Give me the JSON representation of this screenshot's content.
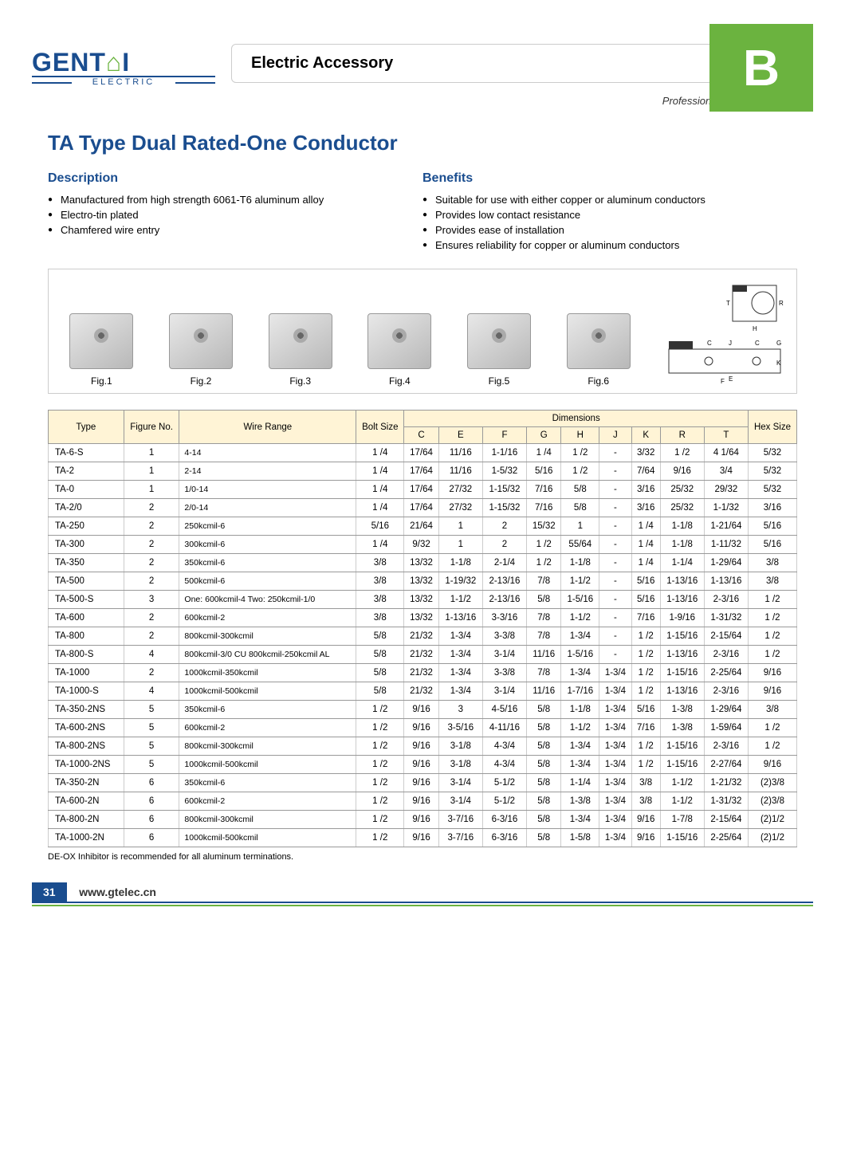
{
  "header": {
    "logo_text_1": "GENT",
    "logo_text_2": "I",
    "logo_sub": "ELECTRIC",
    "title": "Electric Accessory",
    "tab": "B",
    "tagline": "Professional Electrical Supplier"
  },
  "product_title": "TA Type Dual Rated-One Conductor",
  "description": {
    "heading": "Description",
    "items": [
      "Manufactured from high strength 6061-T6 aluminum alloy",
      "Electro-tin plated",
      "Chamfered wire entry"
    ]
  },
  "benefits": {
    "heading": "Benefits",
    "items": [
      "Suitable for use with either copper or aluminum conductors",
      "Provides low contact resistance",
      "Provides ease of installation",
      "Ensures reliability for copper or aluminum conductors"
    ]
  },
  "figures": [
    "Fig.1",
    "Fig.2",
    "Fig.3",
    "Fig.4",
    "Fig.5",
    "Fig.6"
  ],
  "table": {
    "top_headers": [
      "Type",
      "Figure No.",
      "Wire Range",
      "Bolt Size",
      "Dimensions",
      "Hex Size"
    ],
    "dim_headers": [
      "C",
      "E",
      "F",
      "G",
      "H",
      "J",
      "K",
      "R",
      "T"
    ],
    "rows": [
      [
        "TA-6-S",
        "1",
        "4-14",
        "1 /4",
        "17/64",
        "11/16",
        "1-1/16",
        "1 /4",
        "1 /2",
        "-",
        "3/32",
        "1 /2",
        "4 1/64",
        "5/32"
      ],
      [
        "TA-2",
        "1",
        "2-14",
        "1 /4",
        "17/64",
        "11/16",
        "1-5/32",
        "5/16",
        "1 /2",
        "-",
        "7/64",
        "9/16",
        "3/4",
        "5/32"
      ],
      [
        "TA-0",
        "1",
        "1/0-14",
        "1 /4",
        "17/64",
        "27/32",
        "1-15/32",
        "7/16",
        "5/8",
        "-",
        "3/16",
        "25/32",
        "29/32",
        "5/32"
      ],
      [
        "TA-2/0",
        "2",
        "2/0-14",
        "1 /4",
        "17/64",
        "27/32",
        "1-15/32",
        "7/16",
        "5/8",
        "-",
        "3/16",
        "25/32",
        "1-1/32",
        "3/16"
      ],
      [
        "TA-250",
        "2",
        "250kcmil-6",
        "5/16",
        "21/64",
        "1",
        "2",
        "15/32",
        "1",
        "-",
        "1 /4",
        "1-1/8",
        "1-21/64",
        "5/16"
      ],
      [
        "TA-300",
        "2",
        "300kcmil-6",
        "1 /4",
        "9/32",
        "1",
        "2",
        "1 /2",
        "55/64",
        "-",
        "1 /4",
        "1-1/8",
        "1-11/32",
        "5/16"
      ],
      [
        "TA-350",
        "2",
        "350kcmil-6",
        "3/8",
        "13/32",
        "1-1/8",
        "2-1/4",
        "1 /2",
        "1-1/8",
        "-",
        "1 /4",
        "1-1/4",
        "1-29/64",
        "3/8"
      ],
      [
        "TA-500",
        "2",
        "500kcmil-6",
        "3/8",
        "13/32",
        "1-19/32",
        "2-13/16",
        "7/8",
        "1-1/2",
        "-",
        "5/16",
        "1-13/16",
        "1-13/16",
        "3/8"
      ],
      [
        "TA-500-S",
        "3",
        "One: 600kcmil-4 Two: 250kcmil-1/0",
        "3/8",
        "13/32",
        "1-1/2",
        "2-13/16",
        "5/8",
        "1-5/16",
        "-",
        "5/16",
        "1-13/16",
        "2-3/16",
        "1 /2"
      ],
      [
        "TA-600",
        "2",
        "600kcmil-2",
        "3/8",
        "13/32",
        "1-13/16",
        "3-3/16",
        "7/8",
        "1-1/2",
        "-",
        "7/16",
        "1-9/16",
        "1-31/32",
        "1 /2"
      ],
      [
        "TA-800",
        "2",
        "800kcmil-300kcmil",
        "5/8",
        "21/32",
        "1-3/4",
        "3-3/8",
        "7/8",
        "1-3/4",
        "-",
        "1 /2",
        "1-15/16",
        "2-15/64",
        "1 /2"
      ],
      [
        "TA-800-S",
        "4",
        "800kcmil-3/0 CU 800kcmil-250kcmil AL",
        "5/8",
        "21/32",
        "1-3/4",
        "3-1/4",
        "11/16",
        "1-5/16",
        "-",
        "1 /2",
        "1-13/16",
        "2-3/16",
        "1 /2"
      ],
      [
        "TA-1000",
        "2",
        "1000kcmil-350kcmil",
        "5/8",
        "21/32",
        "1-3/4",
        "3-3/8",
        "7/8",
        "1-3/4",
        "1-3/4",
        "1 /2",
        "1-15/16",
        "2-25/64",
        "9/16"
      ],
      [
        "TA-1000-S",
        "4",
        "1000kcmil-500kcmil",
        "5/8",
        "21/32",
        "1-3/4",
        "3-1/4",
        "11/16",
        "1-7/16",
        "1-3/4",
        "1 /2",
        "1-13/16",
        "2-3/16",
        "9/16"
      ],
      [
        "TA-350-2NS",
        "5",
        "350kcmil-6",
        "1 /2",
        "9/16",
        "3",
        "4-5/16",
        "5/8",
        "1-1/8",
        "1-3/4",
        "5/16",
        "1-3/8",
        "1-29/64",
        "3/8"
      ],
      [
        "TA-600-2NS",
        "5",
        "600kcmil-2",
        "1 /2",
        "9/16",
        "3-5/16",
        "4-11/16",
        "5/8",
        "1-1/2",
        "1-3/4",
        "7/16",
        "1-3/8",
        "1-59/64",
        "1 /2"
      ],
      [
        "TA-800-2NS",
        "5",
        "800kcmil-300kcmil",
        "1 /2",
        "9/16",
        "3-1/8",
        "4-3/4",
        "5/8",
        "1-3/4",
        "1-3/4",
        "1 /2",
        "1-15/16",
        "2-3/16",
        "1 /2"
      ],
      [
        "TA-1000-2NS",
        "5",
        "1000kcmil-500kcmil",
        "1 /2",
        "9/16",
        "3-1/8",
        "4-3/4",
        "5/8",
        "1-3/4",
        "1-3/4",
        "1 /2",
        "1-15/16",
        "2-27/64",
        "9/16"
      ],
      [
        "TA-350-2N",
        "6",
        "350kcmil-6",
        "1 /2",
        "9/16",
        "3-1/4",
        "5-1/2",
        "5/8",
        "1-1/4",
        "1-3/4",
        "3/8",
        "1-1/2",
        "1-21/32",
        "(2)3/8"
      ],
      [
        "TA-600-2N",
        "6",
        "600kcmil-2",
        "1 /2",
        "9/16",
        "3-1/4",
        "5-1/2",
        "5/8",
        "1-3/8",
        "1-3/4",
        "3/8",
        "1-1/2",
        "1-31/32",
        "(2)3/8"
      ],
      [
        "TA-800-2N",
        "6",
        "800kcmil-300kcmil",
        "1 /2",
        "9/16",
        "3-7/16",
        "6-3/16",
        "5/8",
        "1-3/4",
        "1-3/4",
        "9/16",
        "1-7/8",
        "2-15/64",
        "(2)1/2"
      ],
      [
        "TA-1000-2N",
        "6",
        "1000kcmil-500kcmil",
        "1 /2",
        "9/16",
        "3-7/16",
        "6-3/16",
        "5/8",
        "1-5/8",
        "1-3/4",
        "9/16",
        "1-15/16",
        "2-25/64",
        "(2)1/2"
      ]
    ]
  },
  "footnote": "DE-OX Inhibitor is recommended for all aluminum terminations.",
  "footer": {
    "page_number": "31",
    "url": "www.gtelec.cn"
  },
  "colors": {
    "brand_blue": "#1a4d8f",
    "brand_green": "#6bb33f",
    "table_header_bg": "#fff4d6",
    "border_gray": "#cccccc"
  }
}
